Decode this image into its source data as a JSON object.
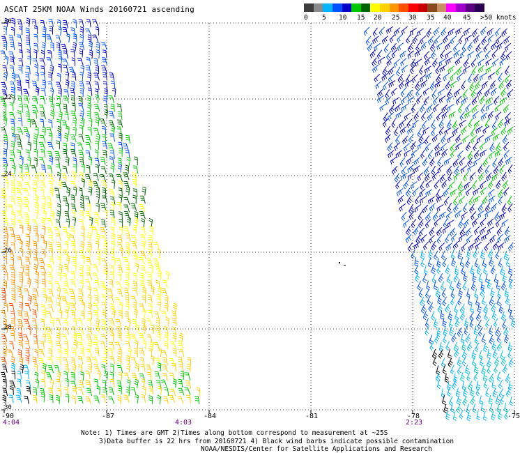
{
  "title": "ASCAT 25KM NOAA Winds 20160721 ascending",
  "legend": {
    "labels": [
      "0",
      "5",
      "10",
      "15",
      "20",
      "25",
      "30",
      "35",
      "40",
      "45",
      ">50 knots"
    ],
    "colors": [
      "#3c3c3c",
      "#8a8a8a",
      "#00b4ff",
      "#0050ff",
      "#0000c8",
      "#00c800",
      "#006400",
      "#ffff00",
      "#ffd200",
      "#ff9600",
      "#ff5000",
      "#ff0000",
      "#c80000",
      "#8a4a1e",
      "#c89060",
      "#ff00ff",
      "#a000c8",
      "#5a0080",
      "#2a0050"
    ]
  },
  "axes": {
    "lat_labels": [
      "20",
      "22",
      "24",
      "26",
      "28",
      "30"
    ],
    "lon_labels": [
      "-90",
      "-87",
      "-84",
      "-81",
      "-78",
      "-75"
    ],
    "time_labels": [
      "4:04",
      "4:03",
      "2:23"
    ]
  },
  "notes": {
    "line1": "Note: 1) Times are GMT 2)Times along bottom correspond to measurement at ~25S",
    "line2": "3)Data buffer is 22 hrs from 20160721 4) Black wind barbs indicate possible contamination",
    "line3": "NOAA/NESDIS/Center for Satellite Applications and Research"
  }
}
